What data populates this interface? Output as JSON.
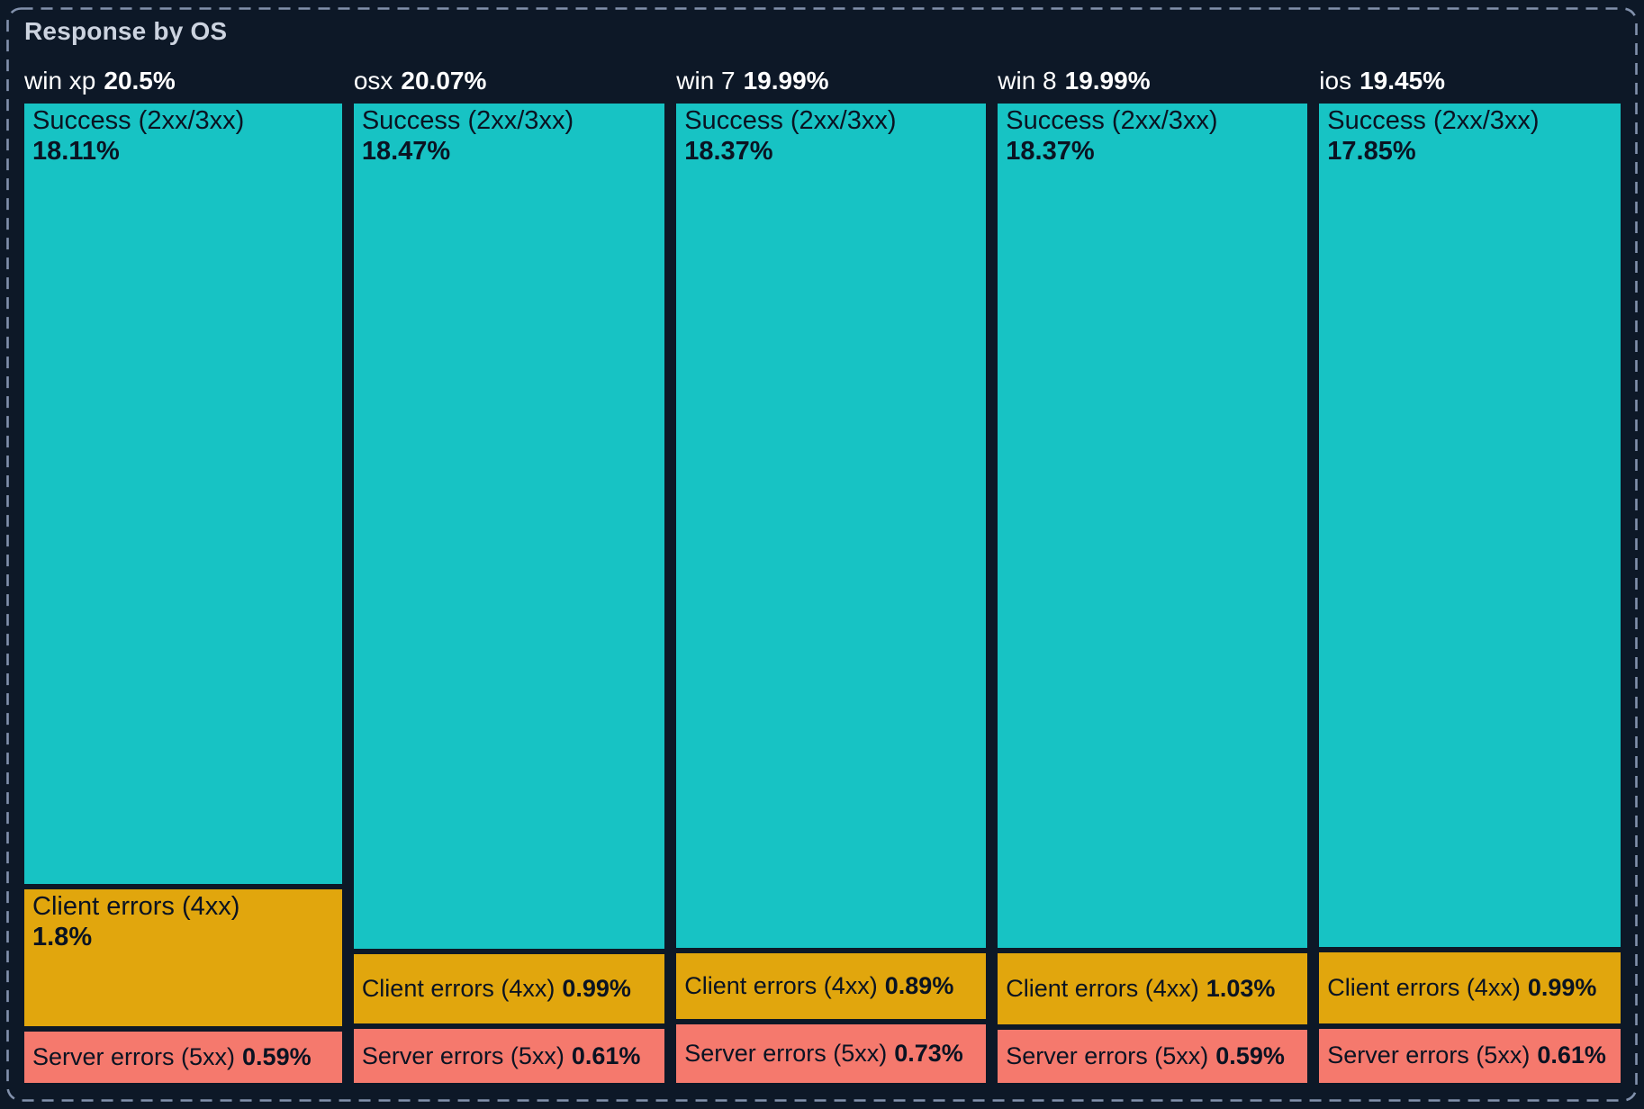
{
  "panel": {
    "title": "Response by OS"
  },
  "colors": {
    "background": "#0d1827",
    "panel_border": "#8291ac",
    "title_text": "#ccd3df",
    "header_text": "#ffffff",
    "block_text": "#0a1322",
    "success": "#17c3c4",
    "client": "#e1a60d",
    "server": "#f5796d"
  },
  "chart_data": {
    "type": "treemap",
    "layout": "columns-mosaic",
    "title": "Response by OS",
    "unit": "%",
    "column_widths_proportional_to_total": true,
    "segment_heights_proportional_to_value": true,
    "categories": [
      "win xp",
      "osx",
      "win 7",
      "win 8",
      "ios"
    ],
    "segment_labels": [
      "Success (2xx/3xx)",
      "Client errors (4xx)",
      "Server errors (5xx)"
    ],
    "columns": [
      {
        "os": "win xp",
        "total": 20.5,
        "total_label": "20.5%",
        "segments": [
          {
            "key": "success",
            "label": "Success (2xx/3xx)",
            "value": 18.11,
            "pct_label": "18.11%"
          },
          {
            "key": "client",
            "label": "Client errors (4xx)",
            "value": 1.8,
            "pct_label": "1.8%"
          },
          {
            "key": "server",
            "label": "Server errors (5xx)",
            "value": 0.59,
            "pct_label": "0.59%"
          }
        ]
      },
      {
        "os": "osx",
        "total": 20.07,
        "total_label": "20.07%",
        "segments": [
          {
            "key": "success",
            "label": "Success (2xx/3xx)",
            "value": 18.47,
            "pct_label": "18.47%"
          },
          {
            "key": "client",
            "label": "Client errors (4xx)",
            "value": 0.99,
            "pct_label": "0.99%"
          },
          {
            "key": "server",
            "label": "Server errors (5xx)",
            "value": 0.61,
            "pct_label": "0.61%"
          }
        ]
      },
      {
        "os": "win 7",
        "total": 19.99,
        "total_label": "19.99%",
        "segments": [
          {
            "key": "success",
            "label": "Success (2xx/3xx)",
            "value": 18.37,
            "pct_label": "18.37%"
          },
          {
            "key": "client",
            "label": "Client errors (4xx)",
            "value": 0.89,
            "pct_label": "0.89%"
          },
          {
            "key": "server",
            "label": "Server errors (5xx)",
            "value": 0.73,
            "pct_label": "0.73%"
          }
        ]
      },
      {
        "os": "win 8",
        "total": 19.99,
        "total_label": "19.99%",
        "segments": [
          {
            "key": "success",
            "label": "Success (2xx/3xx)",
            "value": 18.37,
            "pct_label": "18.37%"
          },
          {
            "key": "client",
            "label": "Client errors (4xx)",
            "value": 1.03,
            "pct_label": "1.03%"
          },
          {
            "key": "server",
            "label": "Server errors (5xx)",
            "value": 0.59,
            "pct_label": "0.59%"
          }
        ]
      },
      {
        "os": "ios",
        "total": 19.45,
        "total_label": "19.45%",
        "segments": [
          {
            "key": "success",
            "label": "Success (2xx/3xx)",
            "value": 17.85,
            "pct_label": "17.85%"
          },
          {
            "key": "client",
            "label": "Client errors (4xx)",
            "value": 0.99,
            "pct_label": "0.99%"
          },
          {
            "key": "server",
            "label": "Server errors (5xx)",
            "value": 0.61,
            "pct_label": "0.61%"
          }
        ]
      }
    ]
  }
}
